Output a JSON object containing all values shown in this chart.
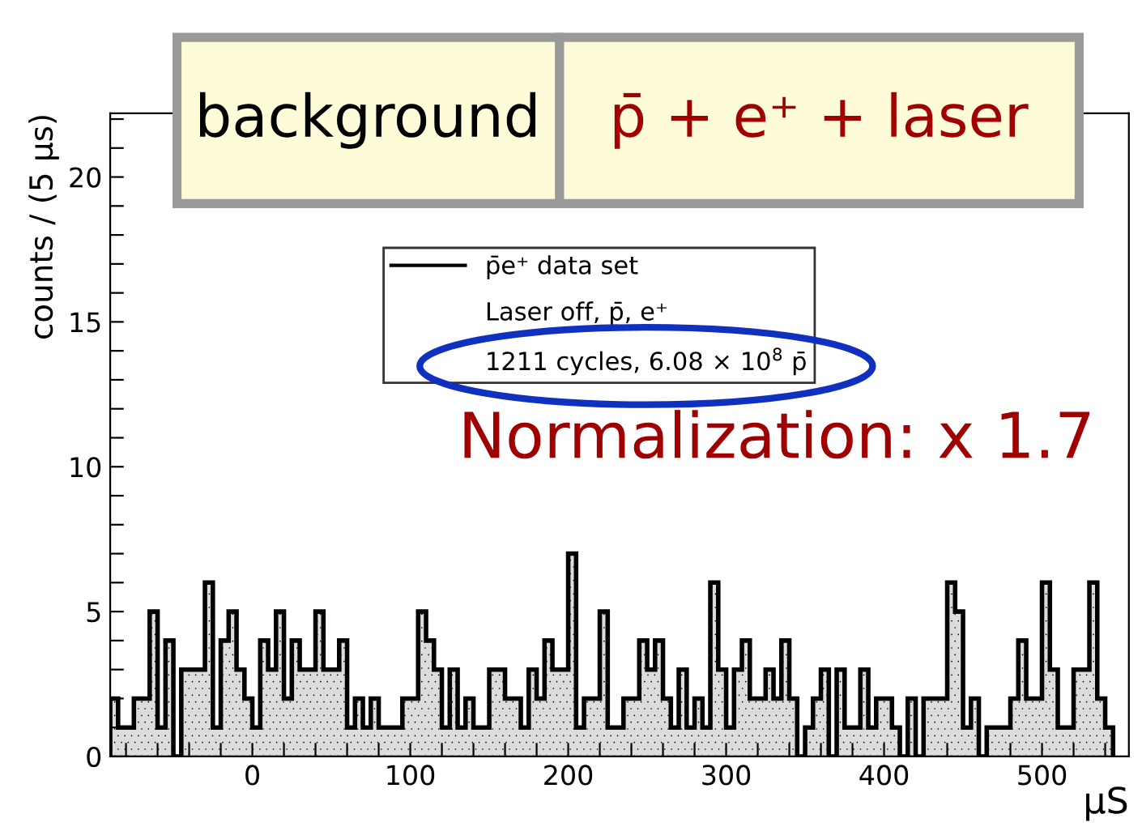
{
  "chart_data": {
    "type": "histogram",
    "xlabel": "µS",
    "ylabel": "counts / (5 µs)",
    "bins": [
      -90,
      -85,
      -80,
      -75,
      -70,
      -65,
      -60,
      -55,
      -50,
      -45,
      -40,
      -35,
      -30,
      -25,
      -20,
      -15,
      -10,
      -5,
      0,
      5,
      10,
      15,
      20,
      25,
      30,
      35,
      40,
      45,
      50,
      55,
      60,
      65,
      70,
      75,
      80,
      85,
      90,
      95,
      100,
      105,
      110,
      115,
      120,
      125,
      130,
      135,
      140,
      145,
      150,
      155,
      160,
      165,
      170,
      175,
      180,
      185,
      190,
      195,
      200,
      205,
      210,
      215,
      220,
      225,
      230,
      235,
      240,
      245,
      250,
      255,
      260,
      265,
      270,
      275,
      280,
      285,
      290,
      295,
      300,
      305,
      310,
      315,
      320,
      325,
      330,
      335,
      340,
      345,
      350,
      355,
      360,
      365,
      370,
      375,
      380,
      385,
      390,
      395,
      400,
      405,
      410,
      415,
      420,
      425,
      430,
      435,
      440,
      445,
      450,
      455,
      460,
      465,
      470,
      475,
      480,
      485,
      490,
      495,
      500,
      505,
      510,
      515,
      520,
      525,
      530,
      535,
      540,
      545
    ],
    "series": [
      {
        "name": "p̄e⁺ data set",
        "color": "#000000",
        "values": [
          2,
          1,
          1,
          2,
          2,
          5,
          1,
          4,
          0,
          3,
          3,
          3,
          6,
          1,
          4,
          5,
          3,
          2,
          1,
          4,
          3,
          5,
          2,
          4,
          3,
          3,
          5,
          3,
          3,
          4,
          1,
          2,
          1,
          2,
          1,
          1,
          1,
          2,
          2,
          5,
          4,
          3,
          1,
          3,
          1,
          2,
          1,
          1,
          3,
          3,
          2,
          2,
          1,
          3,
          2,
          4,
          3,
          3,
          7,
          1,
          2,
          2,
          5,
          1,
          1,
          2,
          2,
          4,
          3,
          4,
          2,
          1,
          3,
          1,
          2,
          1,
          6,
          3,
          1,
          3,
          4,
          2,
          2,
          3,
          2,
          4,
          2,
          0,
          1,
          2,
          3,
          0,
          3,
          1,
          1,
          3,
          1,
          2,
          2,
          1,
          0,
          2,
          0,
          2,
          2,
          2,
          6,
          5,
          1,
          2,
          0,
          1,
          1,
          1,
          2,
          4,
          2,
          2,
          6,
          3,
          1,
          1,
          3,
          3,
          6,
          2,
          1
        ]
      }
    ],
    "xlim": [
      -90,
      555
    ],
    "ylim": [
      0,
      22.2
    ],
    "xticks": [
      {
        "value": -80,
        "label": null
      },
      {
        "value": -60,
        "label": null
      },
      {
        "value": -40,
        "label": null
      },
      {
        "value": -20,
        "label": null
      },
      0,
      {
        "value": 20,
        "label": null
      },
      {
        "value": 40,
        "label": null
      },
      {
        "value": 60,
        "label": null
      },
      {
        "value": 80,
        "label": null
      },
      100,
      {
        "value": 120,
        "label": null
      },
      {
        "value": 140,
        "label": null
      },
      {
        "value": 160,
        "label": null
      },
      {
        "value": 180,
        "label": null
      },
      200,
      {
        "value": 220,
        "label": null
      },
      {
        "value": 240,
        "label": null
      },
      {
        "value": 260,
        "label": null
      },
      {
        "value": 280,
        "label": null
      },
      300,
      {
        "value": 320,
        "label": null
      },
      {
        "value": 340,
        "label": null
      },
      {
        "value": 360,
        "label": null
      },
      {
        "value": 380,
        "label": null
      },
      400,
      {
        "value": 420,
        "label": null
      },
      {
        "value": 440,
        "label": null
      },
      {
        "value": 460,
        "label": null
      },
      {
        "value": 480,
        "label": null
      },
      500,
      {
        "value": 520,
        "label": null
      },
      {
        "value": 540,
        "label": null
      }
    ],
    "yticks": [
      0,
      {
        "value": 1,
        "label": null
      },
      {
        "value": 2,
        "label": null
      },
      {
        "value": 3,
        "label": null
      },
      {
        "value": 4,
        "label": null
      },
      5,
      {
        "value": 6,
        "label": null
      },
      {
        "value": 7,
        "label": null
      },
      {
        "value": 8,
        "label": null
      },
      {
        "value": 9,
        "label": null
      },
      10,
      {
        "value": 11,
        "label": null
      },
      {
        "value": 12,
        "label": null
      },
      {
        "value": 13,
        "label": null
      },
      {
        "value": 14,
        "label": null
      },
      15,
      {
        "value": 16,
        "label": null
      },
      {
        "value": 17,
        "label": null
      },
      {
        "value": 18,
        "label": null
      },
      {
        "value": 19,
        "label": null
      },
      20,
      {
        "value": 21,
        "label": null
      },
      {
        "value": 22,
        "label": null
      }
    ],
    "grid": false,
    "legend": "top",
    "annotations": [
      "Laser off, p̄, e⁺",
      "1211 cycles, 6.08 × 10$^{8}$ p̄",
      "background",
      "p̄ + e⁺ + laser",
      "Normalization: x 1.7"
    ]
  }
}
